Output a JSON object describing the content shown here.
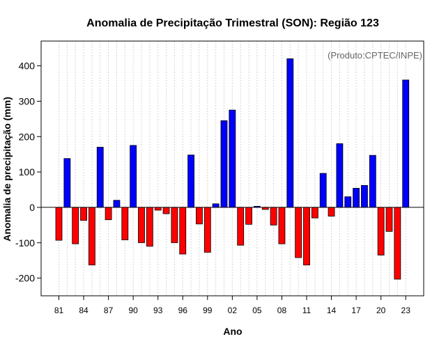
{
  "chart_data": {
    "type": "bar",
    "title": "Anomalia de Precipitação Trimestral (SON): Região 123",
    "xlabel": "Ano",
    "ylabel": "Anomalia de precipitação (mm)",
    "annotation": "(Produto:CPTEC/INPE)",
    "ylim": [
      -250,
      470
    ],
    "yticks": [
      -200,
      -100,
      0,
      100,
      200,
      300,
      400
    ],
    "xtick_labels": [
      "81",
      "84",
      "87",
      "90",
      "93",
      "96",
      "99",
      "02",
      "05",
      "08",
      "11",
      "14",
      "17",
      "20",
      "23"
    ],
    "xtick_every": 3,
    "categories": [
      "1981",
      "1982",
      "1983",
      "1984",
      "1985",
      "1986",
      "1987",
      "1988",
      "1989",
      "1990",
      "1991",
      "1992",
      "1993",
      "1994",
      "1995",
      "1996",
      "1997",
      "1998",
      "1999",
      "2000",
      "2001",
      "2002",
      "2003",
      "2004",
      "2005",
      "2006",
      "2007",
      "2008",
      "2009",
      "2010",
      "2011",
      "2012",
      "2013",
      "2014",
      "2015",
      "2016",
      "2017",
      "2018",
      "2019",
      "2020",
      "2021",
      "2022",
      "2023"
    ],
    "values": [
      -93,
      138,
      -103,
      -37,
      -163,
      170,
      -35,
      20,
      -92,
      175,
      -100,
      -110,
      -8,
      -18,
      -100,
      -132,
      148,
      -47,
      -127,
      10,
      245,
      275,
      -107,
      -48,
      3,
      -6,
      -50,
      -103,
      420,
      -142,
      -163,
      -30,
      96,
      -25,
      180,
      30,
      54,
      62,
      147,
      -135,
      -68,
      -203,
      360
    ],
    "colors": {
      "positive": "#0000ff",
      "negative": "#ff0000",
      "grid": "#d3d3d3",
      "zero_line": "#000000",
      "frame": "#000000"
    }
  }
}
